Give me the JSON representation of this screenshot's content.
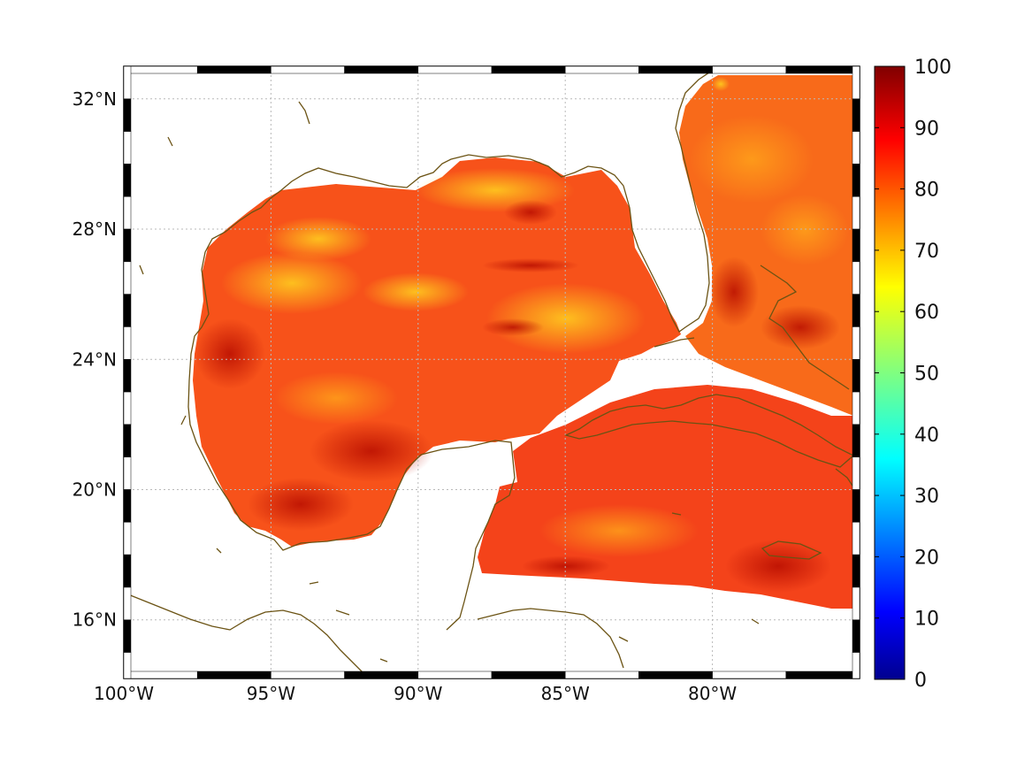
{
  "map": {
    "lon_range": [
      -100,
      -75
    ],
    "lat_range": [
      14.2,
      33
    ],
    "lon_ticks": [
      {
        "value": -100,
        "label": "100°W"
      },
      {
        "value": -95,
        "label": "95°W"
      },
      {
        "value": -90,
        "label": "90°W"
      },
      {
        "value": -85,
        "label": "85°W"
      },
      {
        "value": -80,
        "label": "80°W"
      }
    ],
    "lat_ticks": [
      {
        "value": 32,
        "label": "32°N"
      },
      {
        "value": 28,
        "label": "28°N"
      },
      {
        "value": 24,
        "label": "24°N"
      },
      {
        "value": 20,
        "label": "20°N"
      },
      {
        "value": 16,
        "label": "16°N"
      }
    ],
    "coastline_color": "#6b5314",
    "grid": true
  },
  "colorbar": {
    "min": 0,
    "max": 100,
    "ticks": [
      "0",
      "10",
      "20",
      "30",
      "40",
      "50",
      "60",
      "70",
      "80",
      "90",
      "100"
    ],
    "colormap": "jet"
  }
}
